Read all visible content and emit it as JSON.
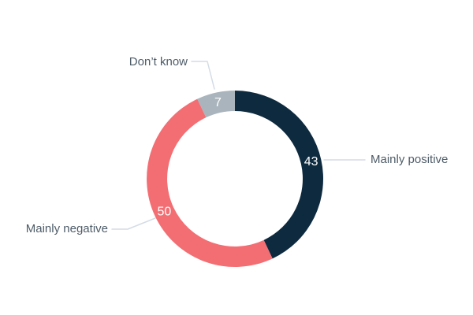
{
  "chart_data": {
    "type": "pie",
    "variant": "donut",
    "categories": [
      "Mainly positive",
      "Mainly negative",
      "Don’t know"
    ],
    "values": [
      43,
      50,
      7
    ],
    "slices": [
      {
        "label": "Mainly positive",
        "value": 43,
        "color": "#0e2a3f"
      },
      {
        "label": "Mainly negative",
        "value": 50,
        "color": "#f36e73"
      },
      {
        "label": "Don’t know",
        "value": 7,
        "color": "#a9b4bc"
      }
    ],
    "total": 100,
    "start_angle_deg": 0,
    "direction": "clockwise",
    "legend_position": "outside-labels-with-leader-lines",
    "value_label_color": "#ffffff",
    "label_color": "#4e5c68",
    "leader_line_color": "#d3dce6",
    "background": "#ffffff"
  }
}
